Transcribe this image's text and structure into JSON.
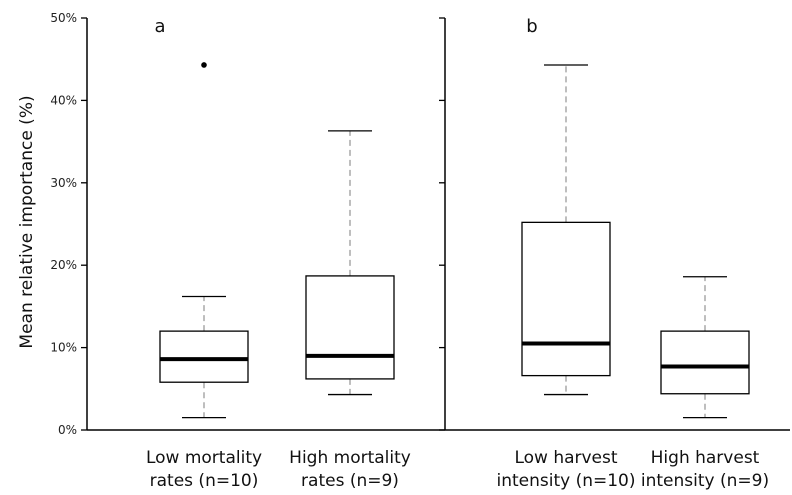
{
  "chart_data": {
    "type": "box",
    "ylabel": "Mean relative importance (%)",
    "ylim": [
      0,
      50
    ],
    "yticks": [
      0,
      10,
      20,
      30,
      40,
      50
    ],
    "ytick_labels": [
      "0%",
      "10%",
      "20%",
      "30%",
      "40%",
      "50%"
    ],
    "grid": false,
    "panels": [
      {
        "label": "a",
        "boxes": [
          {
            "category_lines": [
              "Low mortality",
              "rates (n=10)"
            ],
            "min": 1.5,
            "q1": 5.8,
            "median": 8.6,
            "q3": 12.0,
            "max": 16.2,
            "outliers": [
              44.3
            ]
          },
          {
            "category_lines": [
              "High mortality",
              "rates (n=9)"
            ],
            "min": 4.3,
            "q1": 6.2,
            "median": 9.0,
            "q3": 18.7,
            "max": 36.3,
            "outliers": []
          }
        ]
      },
      {
        "label": "b",
        "boxes": [
          {
            "category_lines": [
              "Low harvest",
              "intensity (n=10)"
            ],
            "min": 4.3,
            "q1": 6.6,
            "median": 10.5,
            "q3": 25.2,
            "max": 44.3,
            "outliers": []
          },
          {
            "category_lines": [
              "High harvest",
              "intensity (n=9)"
            ],
            "min": 1.5,
            "q1": 4.4,
            "median": 7.7,
            "q3": 12.0,
            "max": 18.6,
            "outliers": []
          }
        ]
      }
    ]
  }
}
